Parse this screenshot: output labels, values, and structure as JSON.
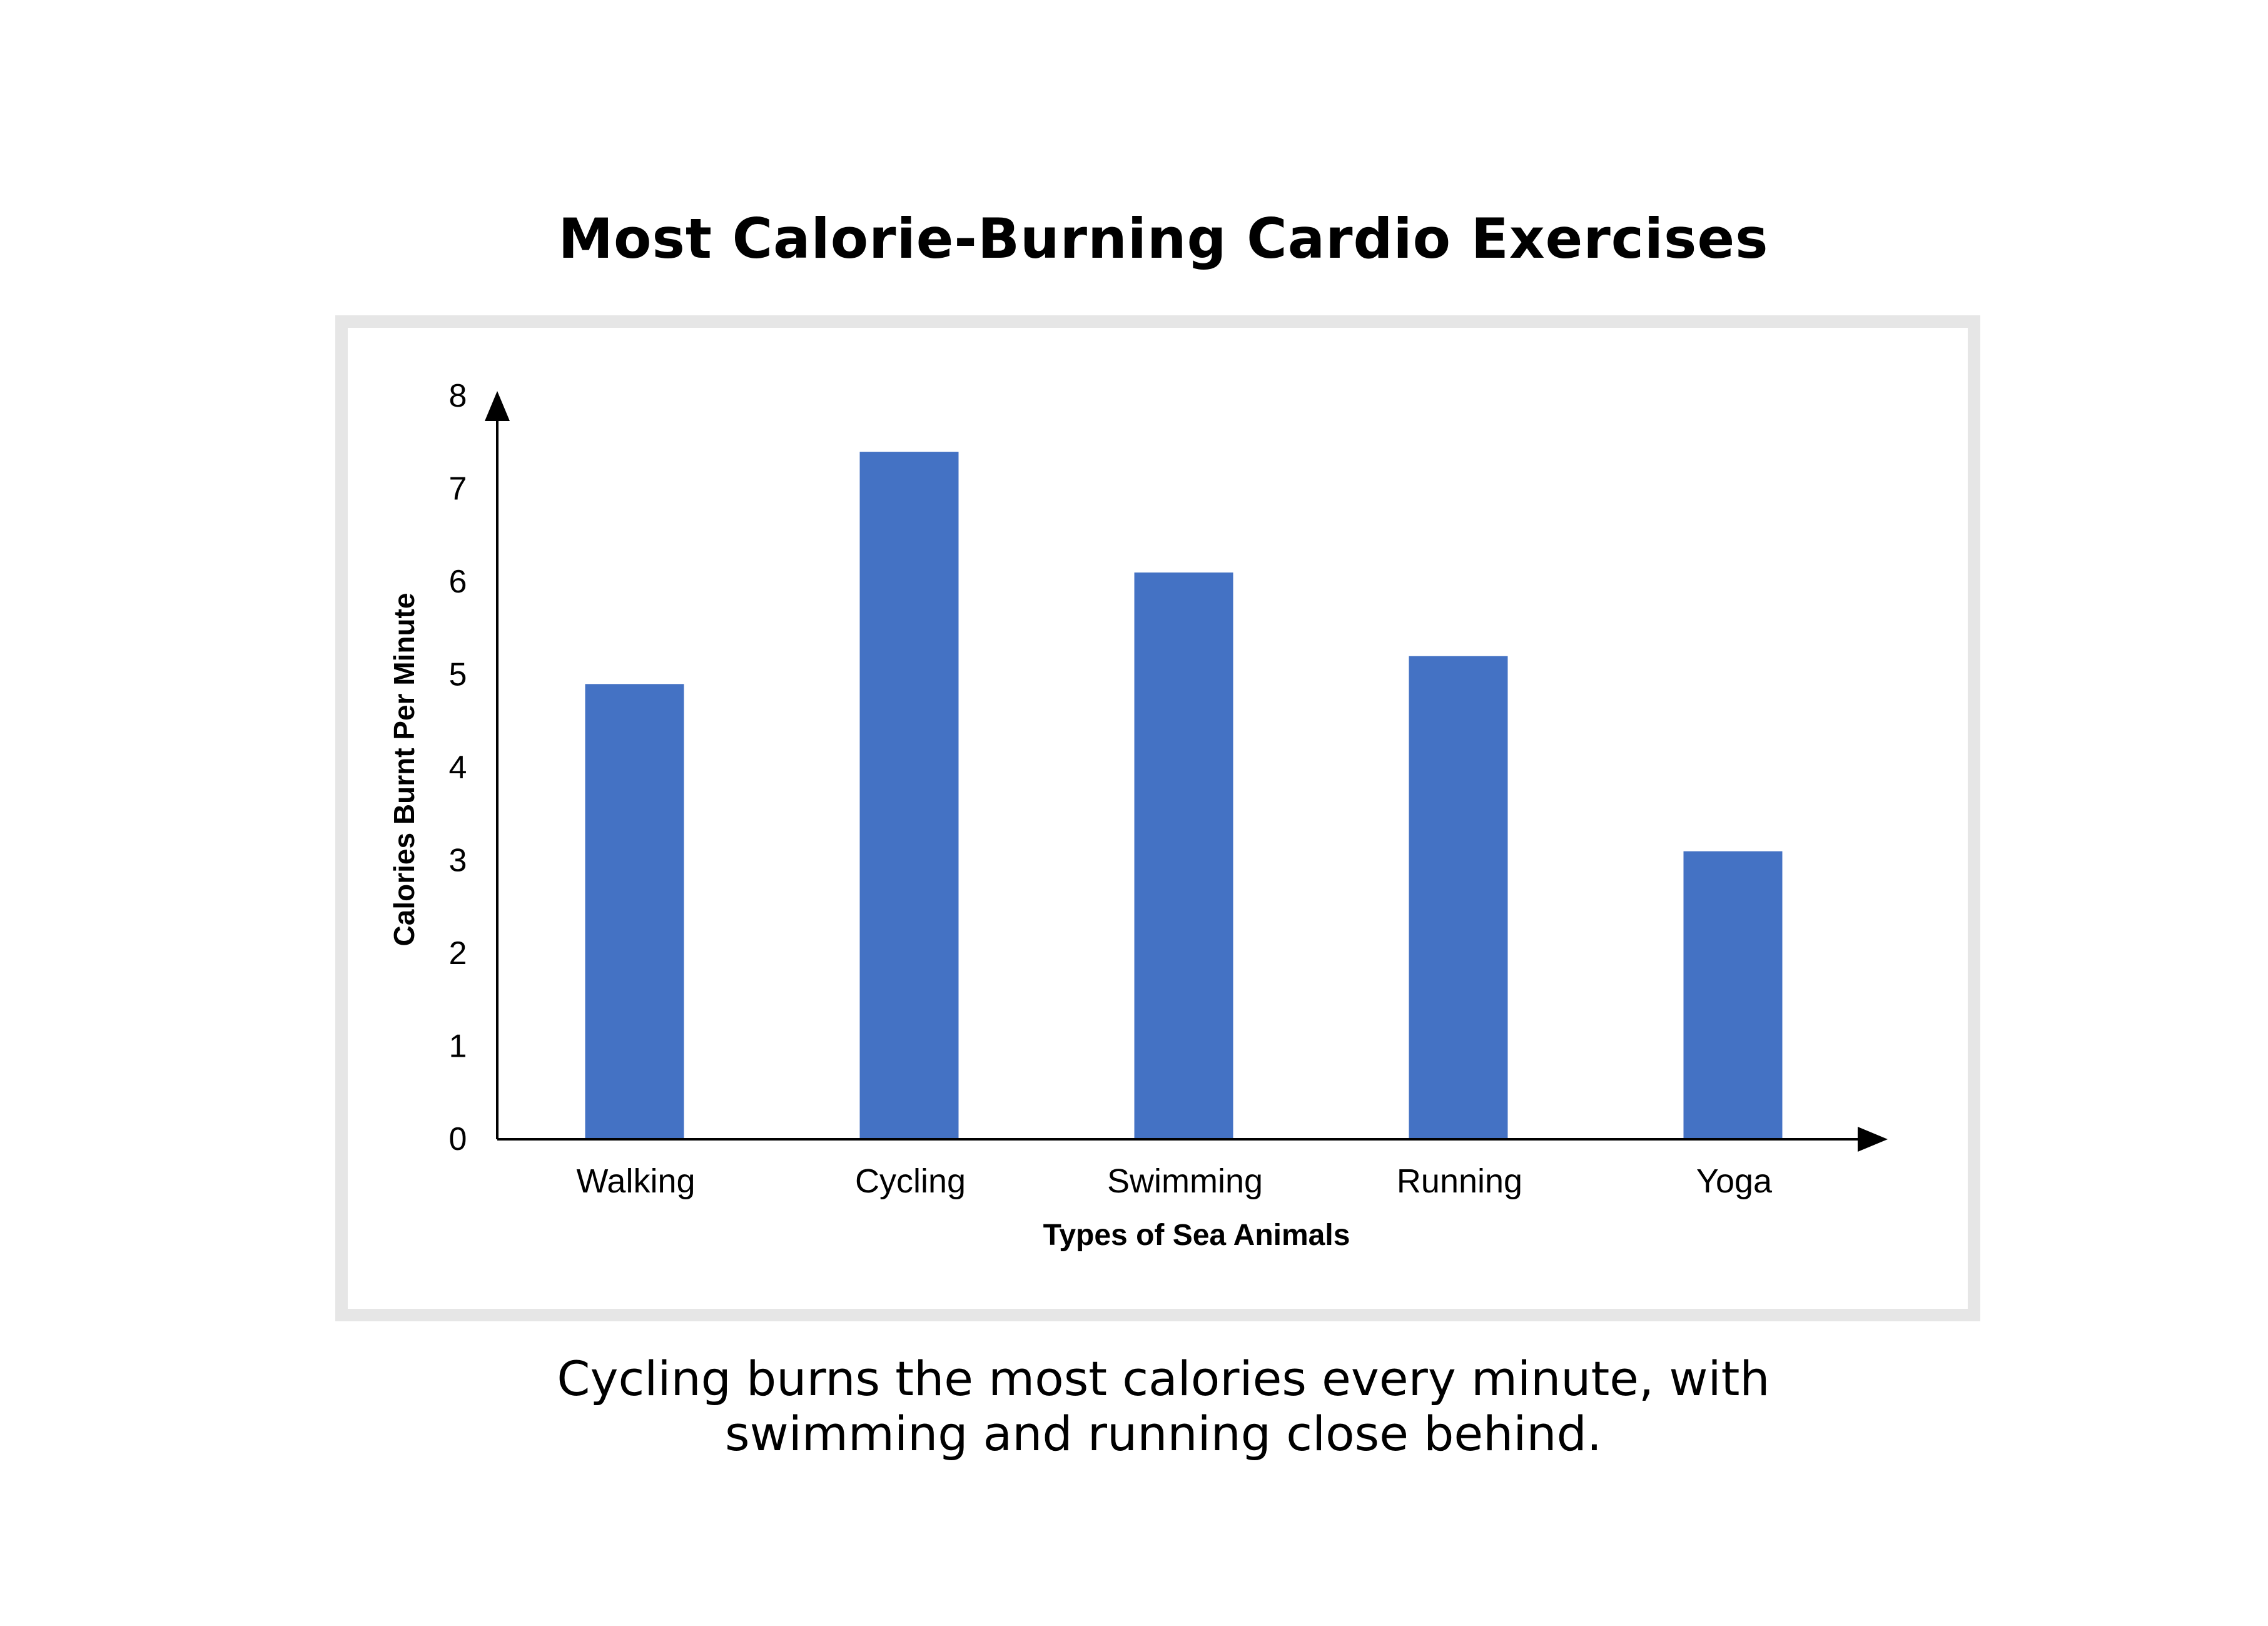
{
  "page": {
    "title": "Most Calorie-Burning Cardio Exercises",
    "caption_line1": "Cycling burns the most calories every minute, with",
    "caption_line2": "swimming and running close behind."
  },
  "colors": {
    "bar": "#4472c4",
    "axis": "#000000",
    "frame": "#e6e6e6"
  },
  "chart_data": {
    "type": "bar",
    "title": "Most Calorie-Burning Cardio Exercises",
    "categories": [
      "Walking",
      "Cycling",
      "Swimming",
      "Running",
      "Yoga"
    ],
    "values": [
      4.9,
      7.4,
      6.1,
      5.2,
      3.1
    ],
    "xlabel": "Types of Sea Animals",
    "ylabel": "Calories Burnt Per Minute",
    "ylim": [
      0,
      8
    ],
    "yticks": [
      "0",
      "1",
      "2",
      "3",
      "4",
      "5",
      "6",
      "7",
      "8"
    ],
    "grid": false,
    "legend": "none"
  }
}
